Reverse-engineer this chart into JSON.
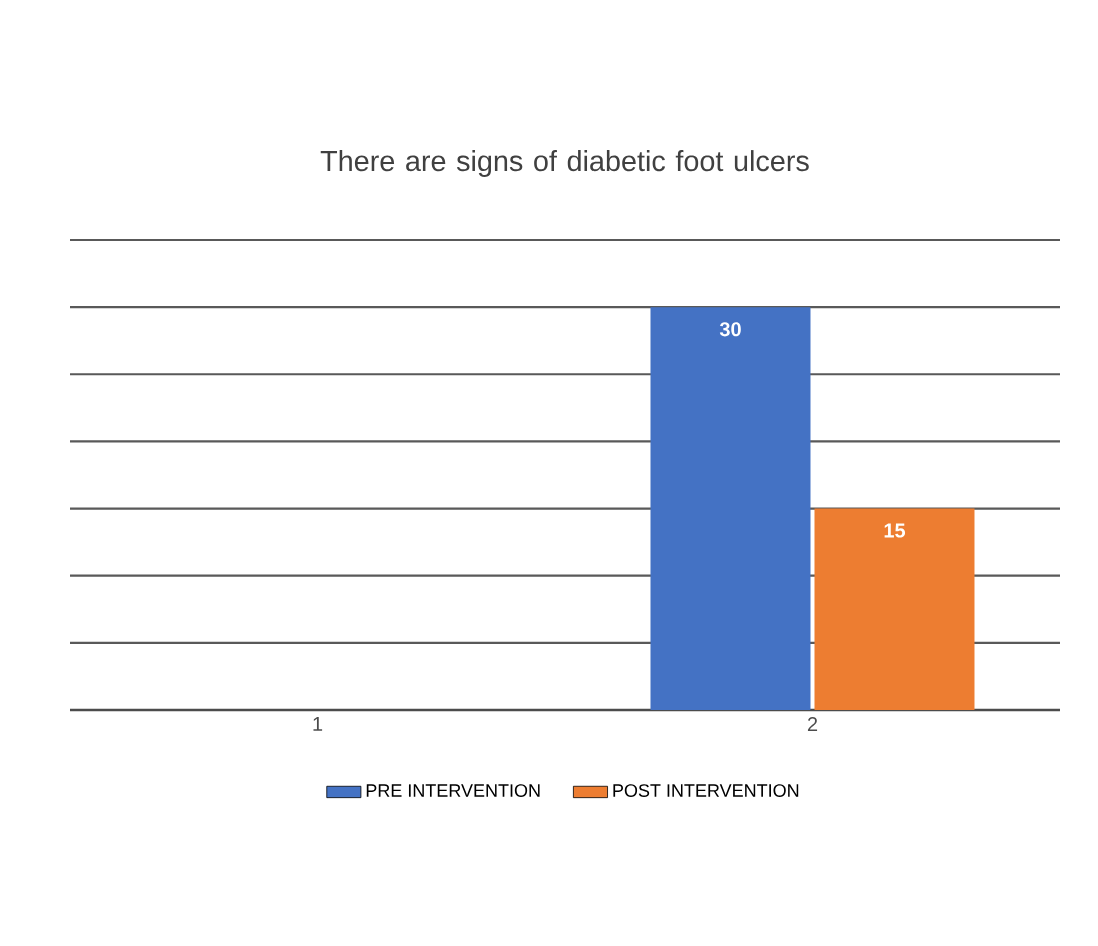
{
  "chart_data": {
    "type": "bar",
    "title": "There are signs of diabetic foot ulcers",
    "categories": [
      "1",
      "2"
    ],
    "series": [
      {
        "name": "PRE INTERVENTION",
        "color": "#4472c4",
        "values": [
          null,
          30
        ]
      },
      {
        "name": "POST INTERVENTION",
        "color": "#ed7d31",
        "values": [
          null,
          15
        ]
      }
    ],
    "ylim": [
      0,
      35
    ],
    "yticks": [
      {
        "value": 0,
        "label": null
      },
      {
        "value": 5,
        "label": null
      },
      {
        "value": 10,
        "label": null
      },
      {
        "value": 15,
        "label": null
      },
      {
        "value": 20,
        "label": null
      },
      {
        "value": 25,
        "label": null
      },
      {
        "value": 30,
        "label": null
      },
      {
        "value": 35,
        "label": null
      }
    ],
    "tick_labels": "x",
    "grid": "y",
    "legend": "bottom",
    "data_labels": true
  }
}
